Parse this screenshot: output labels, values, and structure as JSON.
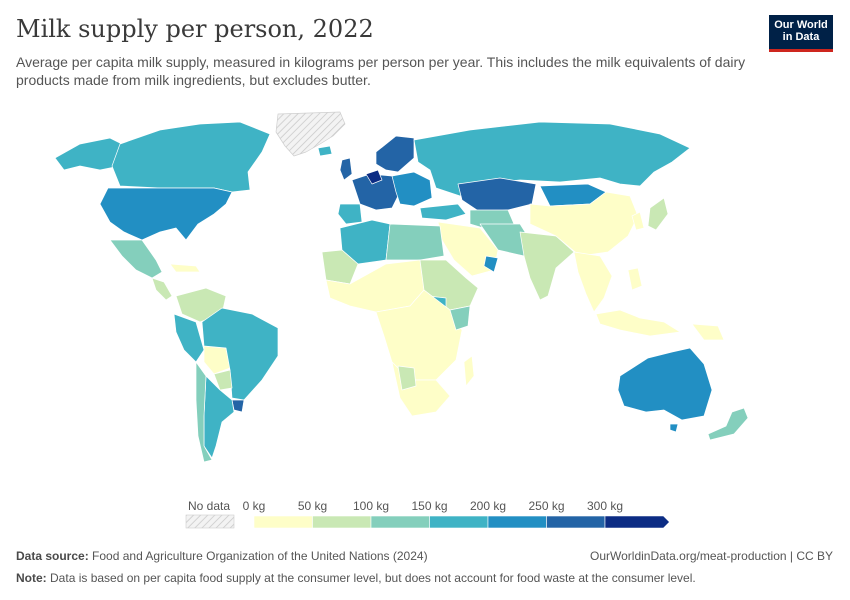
{
  "title": "Milk supply per person, 2022",
  "subtitle": "Average per capita milk supply, measured in kilograms per person per year. This includes the milk equivalents of dairy products made from milk ingredients, but excludes butter.",
  "logo": {
    "line1": "Our World",
    "line2": "in Data"
  },
  "legend": {
    "no_data_label": "No data",
    "bins": [
      {
        "label": "0 kg",
        "color": "#fefec8"
      },
      {
        "label": "50 kg",
        "color": "#c9e8b4"
      },
      {
        "label": "100 kg",
        "color": "#84cfbc"
      },
      {
        "label": "150 kg",
        "color": "#3fb3c5"
      },
      {
        "label": "200 kg",
        "color": "#228fc3"
      },
      {
        "label": "250 kg",
        "color": "#2364a6"
      },
      {
        "label": "300 kg",
        "color": "#0c2c84"
      }
    ]
  },
  "footer": {
    "source_label": "Data source:",
    "source_text": "Food and Agriculture Organization of the United Nations (2024)",
    "url": "OurWorldinData.org/meat-production | CC BY",
    "note_label": "Note:",
    "note_text": "Data is based on per capita food supply at the consumer level, but does not account for food waste at the consumer level."
  }
}
